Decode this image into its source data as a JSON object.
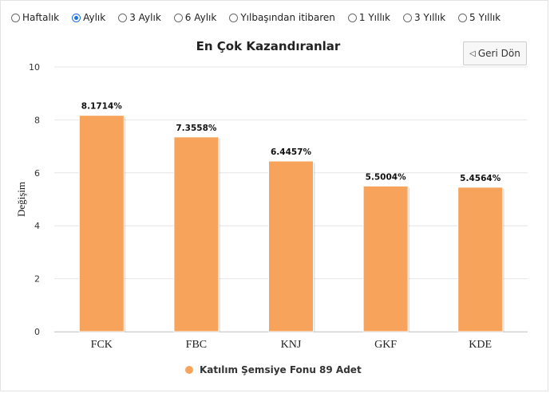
{
  "periods": [
    {
      "label": "Haftalık",
      "checked": false
    },
    {
      "label": "Aylık",
      "checked": true
    },
    {
      "label": "3 Aylık",
      "checked": false
    },
    {
      "label": "6 Aylık",
      "checked": false
    },
    {
      "label": "Yılbaşından itibaren",
      "checked": false
    },
    {
      "label": "1 Yıllık",
      "checked": false
    },
    {
      "label": "3 Yıllık",
      "checked": false
    },
    {
      "label": "5 Yıllık",
      "checked": false
    }
  ],
  "back_button": {
    "label": "Geri Dön",
    "icon": "triangle-left-icon"
  },
  "colors": {
    "bar": "#f7a35c",
    "grid": "#e6e6e6",
    "accent": "#1a73e8"
  },
  "chart_data": {
    "type": "bar",
    "title": "En Çok Kazandıranlar",
    "xlabel": "",
    "ylabel": "Değişim",
    "ylim": [
      0,
      10
    ],
    "yticks": [
      0,
      2,
      4,
      6,
      8,
      10
    ],
    "categories": [
      "FCK",
      "FBC",
      "KNJ",
      "GKF",
      "KDE"
    ],
    "series": [
      {
        "name": "Katılım Şemsiye Fonu 89 Adet",
        "values": [
          8.1714,
          7.3558,
          6.4457,
          5.5004,
          5.4564
        ],
        "labels": [
          "8.1714%",
          "7.3558%",
          "6.4457%",
          "5.5004%",
          "5.4564%"
        ]
      }
    ],
    "grid": true,
    "legend_position": "bottom-center"
  }
}
